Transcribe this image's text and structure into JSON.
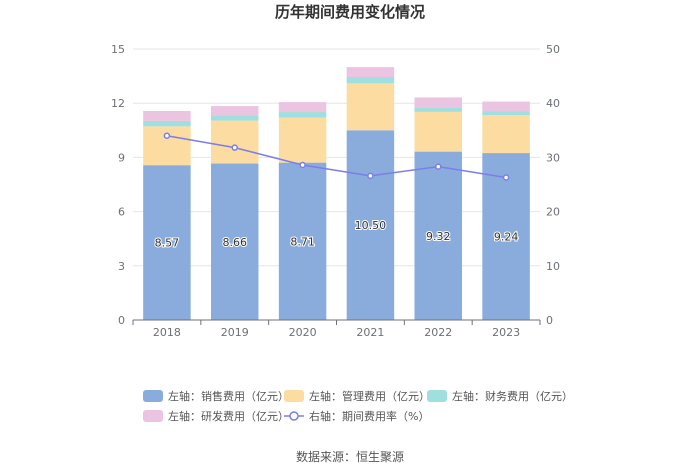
{
  "chart_data": {
    "type": "bar",
    "stacked": true,
    "title": "历年期间费用变化情况",
    "categories": [
      "2018",
      "2019",
      "2020",
      "2021",
      "2022",
      "2023"
    ],
    "y_left": {
      "min": 0,
      "max": 15,
      "ticks": [
        "0",
        "3",
        "6",
        "9",
        "12",
        "15"
      ]
    },
    "y_right": {
      "min": 0,
      "max": 50,
      "ticks": [
        "0",
        "10",
        "20",
        "30",
        "40",
        "50"
      ]
    },
    "series": [
      {
        "name": "左轴：销售费用（亿元）",
        "axis": "left",
        "color": "#8aacdc",
        "values": [
          8.57,
          8.66,
          8.71,
          10.5,
          9.32,
          9.24
        ],
        "labels": [
          "8.57",
          "8.66",
          "8.71",
          "10.50",
          "9.32",
          "9.24"
        ]
      },
      {
        "name": "左轴：管理费用（亿元）",
        "axis": "left",
        "color": "#fcdca0",
        "values": [
          2.15,
          2.38,
          2.5,
          2.6,
          2.2,
          2.1
        ]
      },
      {
        "name": "左轴：财务费用（亿元）",
        "axis": "left",
        "color": "#9fdfdf",
        "values": [
          0.3,
          0.3,
          0.3,
          0.35,
          0.25,
          0.2
        ]
      },
      {
        "name": "左轴：研发费用（亿元）",
        "axis": "left",
        "color": "#ebc4e2",
        "values": [
          0.55,
          0.5,
          0.55,
          0.55,
          0.55,
          0.55
        ]
      },
      {
        "name": "右轴：期间费用率（%）",
        "axis": "right",
        "type": "line",
        "color": "#7b7ee8",
        "values": [
          34.0,
          31.8,
          28.6,
          26.6,
          28.3,
          26.3
        ]
      }
    ],
    "grid": true,
    "legend_position": "bottom"
  },
  "source": "数据来源：恒生聚源"
}
